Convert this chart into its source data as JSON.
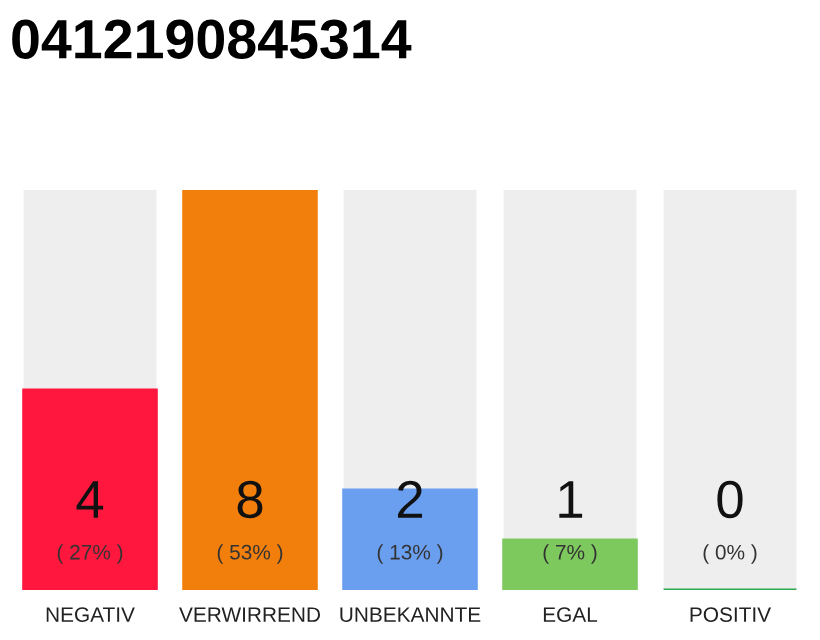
{
  "chart_data": {
    "type": "bar",
    "title": "0412190845314",
    "categories": [
      "NEGATIV",
      "VERWIRREND",
      "UNBEKANNTE",
      "EGAL",
      "POSITIV"
    ],
    "values": [
      4,
      8,
      2,
      1,
      0
    ],
    "colors": [
      "#ff173d",
      "#f27f0c",
      "#6a9ff0",
      "#7dc95e",
      "#2ea84e"
    ],
    "grid": false,
    "value_labels": [
      "4\n( 27% )",
      "8\n( 53% )",
      "2\n( 13% )",
      "1\n( 7% )",
      "0\n( 0% )"
    ]
  }
}
